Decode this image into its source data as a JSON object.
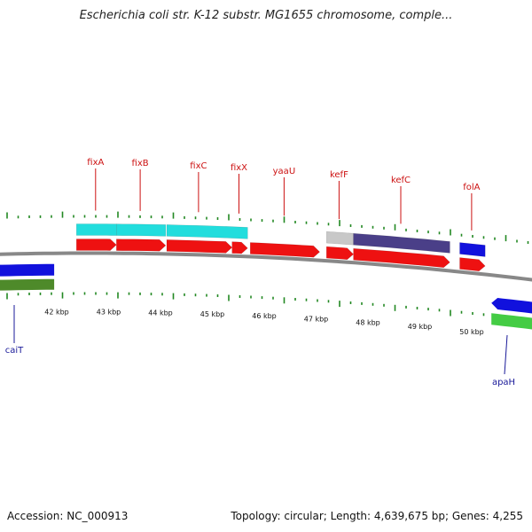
{
  "title": "Escherichia coli str. K-12 substr. MG1655 chromosome, comple...",
  "footer": {
    "accession": "Accession: NC_000913",
    "summary": "Topology: circular; Length: 4,639,675 bp; Genes: 4,255"
  },
  "colors": {
    "gene": "#ee1111",
    "cds": "#22dddd",
    "rev_gene": "#1111dd",
    "rev_cds": "#4e8a2a",
    "rev_cds2": "#44cc44",
    "kefF_cds": "#c8c8c8",
    "kefC_cds": "#4a3f88",
    "tick": "#228822",
    "backbone": "#888888"
  },
  "scale_labels": [
    "42 kbp",
    "43 kbp",
    "44 kbp",
    "45 kbp",
    "46 kbp",
    "47 kbp",
    "48 kbp",
    "49 kbp",
    "50 kbp"
  ],
  "forward_genes": [
    {
      "name": "fixA",
      "start_kbp": 42.38,
      "end_kbp": 43.15
    },
    {
      "name": "fixB",
      "start_kbp": 43.15,
      "end_kbp": 44.1
    },
    {
      "name": "fixC",
      "start_kbp": 44.12,
      "end_kbp": 45.38
    },
    {
      "name": "fixX",
      "start_kbp": 45.38,
      "end_kbp": 45.68
    },
    {
      "name": "yaaU",
      "start_kbp": 45.73,
      "end_kbp": 47.07
    },
    {
      "name": "kefF",
      "start_kbp": 47.2,
      "end_kbp": 47.72
    },
    {
      "name": "kefC",
      "start_kbp": 47.72,
      "end_kbp": 49.58
    },
    {
      "name": "folA",
      "start_kbp": 49.77,
      "end_kbp": 50.26
    }
  ],
  "reverse_genes": [
    {
      "name": "caiT",
      "start_kbp": 40.8,
      "end_kbp": 41.95
    },
    {
      "name": "apaH",
      "start_kbp": 50.38,
      "end_kbp": 51.2
    }
  ]
}
